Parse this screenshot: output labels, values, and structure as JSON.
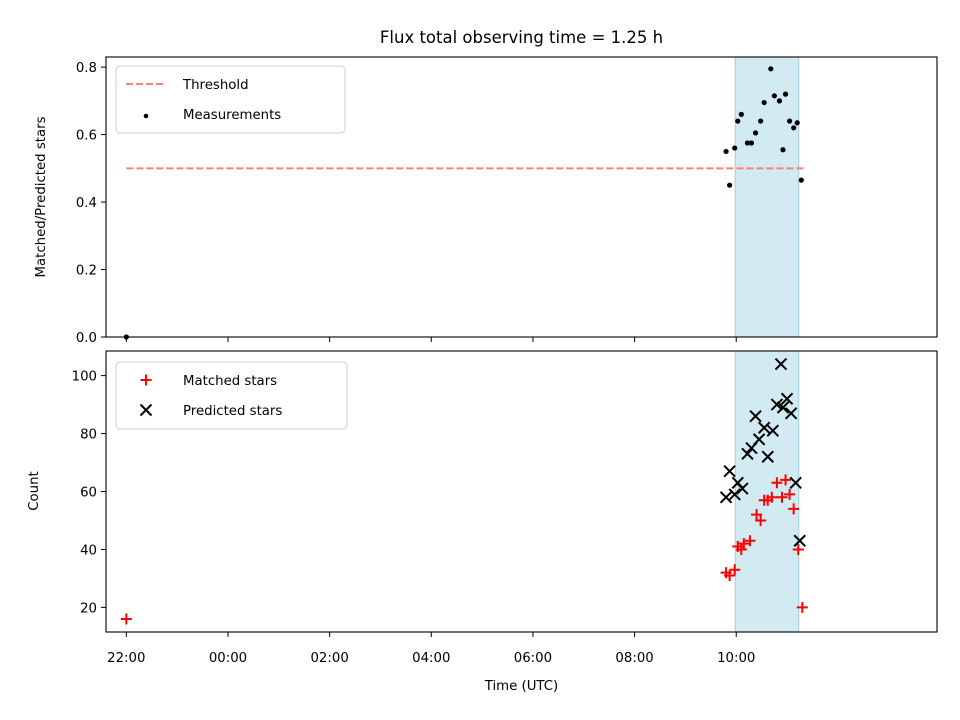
{
  "title": "Flux total observing time = 1.25 h",
  "colors": {
    "threshold": "#ff7f7f",
    "measurements": "#000000",
    "matched": "#ff0000",
    "predicted": "#000000",
    "span_fill": "#add8e6",
    "span_edge": "#9fd0da"
  },
  "chart_data": [
    {
      "type": "scatter",
      "ylabel": "Matched/Predicted stars",
      "xlim_hours": [
        -2.4,
        13.95
      ],
      "ylim": [
        0,
        0.83
      ],
      "yticks": [
        "0.0",
        "0.2",
        "0.4",
        "0.6",
        "0.8"
      ],
      "ytick_values": [
        0,
        0.2,
        0.4,
        0.6,
        0.8
      ],
      "shaded_span_hours": [
        9.98,
        11.23
      ],
      "legend": {
        "placement": "top-left",
        "entries": [
          "Threshold",
          "Measurements"
        ]
      },
      "series": [
        {
          "name": "Threshold",
          "kind": "dashed-line",
          "x": [
            -2.0,
            11.35
          ],
          "y": [
            0.5,
            0.5
          ]
        },
        {
          "name": "Measurements",
          "kind": "dot",
          "x": [
            -2.0,
            9.8,
            9.87,
            9.97,
            10.03,
            10.1,
            10.22,
            10.3,
            10.38,
            10.48,
            10.55,
            10.68,
            10.75,
            10.85,
            10.92,
            10.97,
            11.05,
            11.13,
            11.2,
            11.28
          ],
          "y": [
            0.0,
            0.55,
            0.45,
            0.56,
            0.64,
            0.66,
            0.575,
            0.575,
            0.605,
            0.64,
            0.695,
            0.795,
            0.715,
            0.7,
            0.555,
            0.72,
            0.64,
            0.62,
            0.635,
            0.465
          ]
        }
      ]
    },
    {
      "type": "scatter",
      "ylabel": "Count",
      "xlabel": "Time (UTC)",
      "xlim_hours": [
        -2.4,
        13.95
      ],
      "xticks": [
        "22:00",
        "00:00",
        "02:00",
        "04:00",
        "06:00",
        "08:00",
        "10:00"
      ],
      "xtick_hours": [
        -2,
        0,
        2,
        4,
        6,
        8,
        10
      ],
      "ylim": [
        11.5,
        108.5
      ],
      "yticks": [
        "20",
        "40",
        "60",
        "80",
        "100"
      ],
      "ytick_values": [
        20,
        40,
        60,
        80,
        100
      ],
      "shaded_span_hours": [
        9.98,
        11.23
      ],
      "legend": {
        "placement": "top-left",
        "entries": [
          "Matched stars",
          "Predicted stars"
        ]
      },
      "series": [
        {
          "name": "Matched stars",
          "kind": "plus",
          "x": [
            -2.0,
            9.8,
            9.87,
            9.97,
            10.03,
            10.1,
            10.15,
            10.27,
            10.4,
            10.48,
            10.55,
            10.62,
            10.7,
            10.8,
            10.9,
            10.97,
            11.05,
            11.13,
            11.22,
            11.3
          ],
          "y": [
            16,
            32,
            31,
            33,
            41,
            40,
            42,
            43,
            52,
            50,
            57,
            57,
            58,
            63,
            58,
            64,
            59,
            54,
            40,
            20
          ]
        },
        {
          "name": "Predicted stars",
          "kind": "x",
          "x": [
            9.8,
            9.87,
            9.97,
            10.03,
            10.12,
            10.22,
            10.3,
            10.38,
            10.45,
            10.55,
            10.62,
            10.72,
            10.8,
            10.88,
            10.92,
            11.0,
            11.08,
            11.17,
            11.25
          ],
          "y": [
            58,
            67,
            59,
            63,
            61,
            73,
            75,
            86,
            78,
            82,
            72,
            81,
            90,
            104,
            89,
            92,
            87,
            63,
            43
          ]
        }
      ]
    }
  ]
}
